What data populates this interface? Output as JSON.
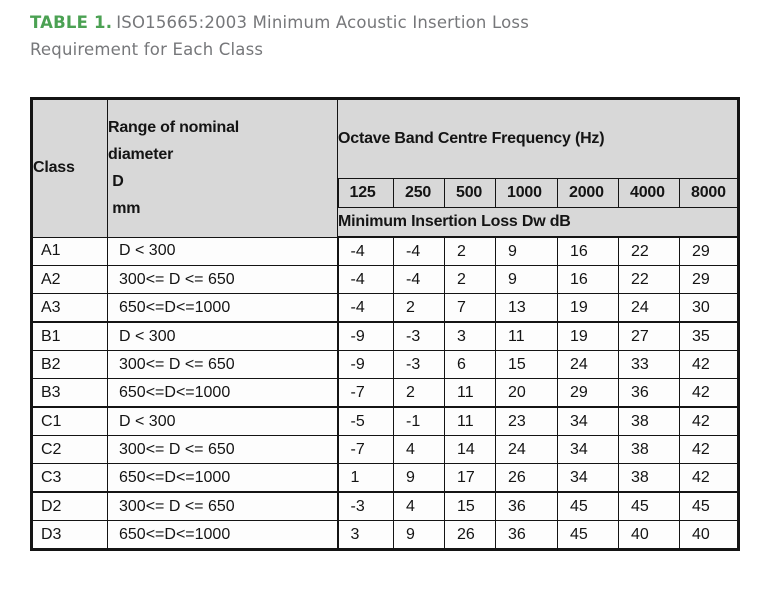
{
  "caption": {
    "label": "TABLE 1.",
    "title_line1": "ISO15665:2003 Minimum Acoustic Insertion Loss",
    "title_line2": "Requirement for Each Class",
    "label_color": "#4ba153",
    "text_color": "#76777a"
  },
  "table": {
    "header": {
      "class_label": "Class",
      "range_lines": [
        "Range of nominal",
        "diameter",
        " D",
        " mm"
      ],
      "octave_label": "Octave Band Centre Frequency (Hz)",
      "frequencies": [
        "125",
        "250",
        "500",
        "1000",
        "2000",
        "4000",
        "8000"
      ],
      "subheader_label": "Minimum Insertion Loss Dw dB",
      "header_bg": "#d8d8d8"
    },
    "rows": [
      {
        "class": "A1",
        "range": "D < 300",
        "values": [
          -4,
          -4,
          2,
          9,
          16,
          22,
          29
        ]
      },
      {
        "class": "A2",
        "range": "300<= D <= 650",
        "values": [
          -4,
          -4,
          2,
          9,
          16,
          22,
          29
        ]
      },
      {
        "class": "A3",
        "range": "650<=D<=1000",
        "values": [
          -4,
          2,
          7,
          13,
          19,
          24,
          30
        ]
      },
      {
        "class": "B1",
        "range": "D < 300",
        "values": [
          -9,
          -3,
          3,
          11,
          19,
          27,
          35
        ]
      },
      {
        "class": "B2",
        "range": "300<= D <= 650",
        "values": [
          -9,
          -3,
          6,
          15,
          24,
          33,
          42
        ]
      },
      {
        "class": "B3",
        "range": "650<=D<=1000",
        "values": [
          -7,
          2,
          11,
          20,
          29,
          36,
          42
        ]
      },
      {
        "class": "C1",
        "range": "D < 300",
        "values": [
          -5,
          -1,
          11,
          23,
          34,
          38,
          42
        ]
      },
      {
        "class": "C2",
        "range": "300<= D <= 650",
        "values": [
          -7,
          4,
          14,
          24,
          34,
          38,
          42
        ]
      },
      {
        "class": "C3",
        "range": "650<=D<=1000",
        "values": [
          1,
          9,
          17,
          26,
          34,
          38,
          42
        ]
      },
      {
        "class": "D2",
        "range": "300<= D <= 650",
        "values": [
          -3,
          4,
          15,
          36,
          45,
          45,
          45
        ]
      },
      {
        "class": "D3",
        "range": "650<=D<=1000",
        "values": [
          3,
          9,
          26,
          36,
          45,
          40,
          40
        ]
      }
    ]
  },
  "chart_data": {
    "type": "table",
    "title": "TABLE 1. ISO15665:2003 Minimum Acoustic Insertion Loss Requirement for Each Class",
    "columns": [
      "Class",
      "Range of nominal diameter D mm",
      "125",
      "250",
      "500",
      "1000",
      "2000",
      "4000",
      "8000"
    ],
    "units": "Minimum Insertion Loss Dw dB at Octave Band Centre Frequency (Hz)",
    "rows": [
      [
        "A1",
        "D < 300",
        -4,
        -4,
        2,
        9,
        16,
        22,
        29
      ],
      [
        "A2",
        "300<= D <= 650",
        -4,
        -4,
        2,
        9,
        16,
        22,
        29
      ],
      [
        "A3",
        "650<=D<=1000",
        -4,
        2,
        7,
        13,
        19,
        24,
        30
      ],
      [
        "B1",
        "D < 300",
        -9,
        -3,
        3,
        11,
        19,
        27,
        35
      ],
      [
        "B2",
        "300<= D <= 650",
        -9,
        -3,
        6,
        15,
        24,
        33,
        42
      ],
      [
        "B3",
        "650<=D<=1000",
        -7,
        2,
        11,
        20,
        29,
        36,
        42
      ],
      [
        "C1",
        "D < 300",
        -5,
        -1,
        11,
        23,
        34,
        38,
        42
      ],
      [
        "C2",
        "300<= D <= 650",
        -7,
        4,
        14,
        24,
        34,
        38,
        42
      ],
      [
        "C3",
        "650<=D<=1000",
        1,
        9,
        17,
        26,
        34,
        38,
        42
      ],
      [
        "D2",
        "300<= D <= 650",
        -3,
        4,
        15,
        36,
        45,
        45,
        45
      ],
      [
        "D3",
        "650<=D<=1000",
        3,
        9,
        26,
        36,
        45,
        40,
        40
      ]
    ]
  }
}
